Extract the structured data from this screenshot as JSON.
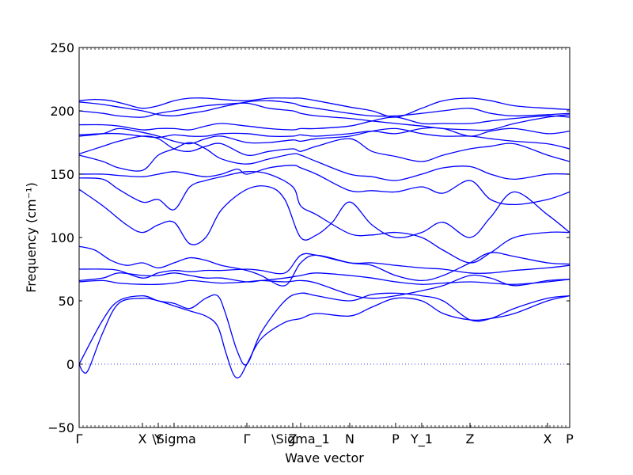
{
  "chart_data": {
    "type": "line",
    "xlabel": "Wave vector",
    "ylabel": "Frequency (cm⁻¹)",
    "ylim": [
      -50,
      250
    ],
    "yticks": [
      -50,
      0,
      50,
      100,
      150,
      200,
      250
    ],
    "zero_line": 0,
    "grid": false,
    "color": "#0000ff",
    "xlim": [
      0,
      6.2
    ],
    "xticks": [
      {
        "label": "Γ",
        "x": 0.0
      },
      {
        "label": "X",
        "x": 0.8
      },
      {
        "label": "Y",
        "x": 1.0
      },
      {
        "label": "\\Sigma",
        "x": 1.2
      },
      {
        "label": "Γ",
        "x": 2.12
      },
      {
        "label": "Z",
        "x": 2.7
      },
      {
        "label": "\\Sigma_1",
        "x": 2.8
      },
      {
        "label": "N",
        "x": 3.42
      },
      {
        "label": "P",
        "x": 4.0
      },
      {
        "label": "Y_1",
        "x": 4.33
      },
      {
        "label": "Z",
        "x": 4.94
      },
      {
        "label": "X",
        "x": 5.92
      },
      {
        "label": "P",
        "x": 6.2
      }
    ],
    "series": [
      {
        "x": [
          0,
          0.05,
          0.12,
          0.3,
          0.5,
          0.8,
          1.0,
          1.2,
          1.4,
          1.6,
          1.75,
          1.85,
          1.95,
          2.03,
          2.12,
          2.3,
          2.6,
          2.8,
          3.0,
          3.42,
          3.7,
          4.0,
          4.33,
          4.6,
          4.94,
          5.2,
          5.5,
          5.92,
          6.2
        ],
        "y": [
          0,
          -6,
          -4,
          25,
          48,
          52,
          50,
          46,
          42,
          38,
          30,
          10,
          -8,
          -10,
          0,
          20,
          33,
          36,
          40,
          38,
          45,
          52,
          50,
          40,
          35,
          36,
          40,
          50,
          54
        ]
      },
      {
        "x": [
          0,
          0.3,
          0.5,
          0.8,
          1.0,
          1.2,
          1.4,
          1.6,
          1.75,
          1.85,
          2.0,
          2.12,
          2.3,
          2.6,
          2.8,
          3.0,
          3.42,
          3.7,
          4.0,
          4.33,
          4.6,
          4.94,
          5.2,
          5.5,
          5.92,
          6.2
        ],
        "y": [
          0,
          35,
          50,
          54,
          50,
          48,
          44,
          52,
          54,
          40,
          10,
          0,
          25,
          50,
          56,
          54,
          50,
          55,
          56,
          54,
          50,
          35,
          36,
          44,
          52,
          54
        ]
      },
      {
        "x": [
          0,
          0.3,
          0.5,
          0.8,
          1.0,
          1.2,
          1.4,
          1.6,
          1.8,
          2.12,
          2.3,
          2.6,
          2.8,
          3.0,
          3.42,
          3.7,
          4.0,
          4.33,
          4.6,
          4.94,
          5.2,
          5.5,
          5.92,
          6.2
        ],
        "y": [
          65,
          66,
          64,
          63,
          63,
          64,
          66,
          65,
          64,
          65,
          66,
          65,
          66,
          64,
          55,
          52,
          54,
          58,
          62,
          70,
          68,
          62,
          66,
          67
        ]
      },
      {
        "x": [
          0,
          0.3,
          0.5,
          0.8,
          1.0,
          1.2,
          1.4,
          1.6,
          1.8,
          2.12,
          2.3,
          2.6,
          2.8,
          3.0,
          3.42,
          3.7,
          4.0,
          4.33,
          4.6,
          4.94,
          5.2,
          5.5,
          5.92,
          6.2
        ],
        "y": [
          66,
          68,
          72,
          70,
          70,
          72,
          70,
          68,
          68,
          65,
          66,
          68,
          70,
          72,
          70,
          68,
          65,
          63,
          64,
          65,
          64,
          63,
          65,
          67
        ]
      },
      {
        "x": [
          0,
          0.3,
          0.5,
          0.8,
          1.0,
          1.2,
          1.4,
          1.6,
          1.8,
          2.12,
          2.3,
          2.6,
          2.8,
          3.0,
          3.42,
          3.7,
          4.0,
          4.33,
          4.6,
          4.94,
          5.2,
          5.5,
          5.92,
          6.2
        ],
        "y": [
          75,
          75,
          74,
          68,
          72,
          74,
          73,
          74,
          74,
          75,
          74,
          72,
          86,
          86,
          80,
          80,
          78,
          76,
          75,
          72,
          72,
          74,
          76,
          78
        ]
      },
      {
        "x": [
          0,
          0.2,
          0.4,
          0.6,
          0.8,
          1.0,
          1.2,
          1.4,
          1.6,
          1.8,
          2.12,
          2.3,
          2.6,
          2.8,
          3.0,
          3.42,
          3.7,
          4.0,
          4.33,
          4.6,
          4.94,
          5.2,
          5.5,
          5.92,
          6.2
        ],
        "y": [
          93,
          90,
          82,
          78,
          80,
          76,
          80,
          84,
          82,
          78,
          74,
          70,
          62,
          80,
          86,
          80,
          78,
          70,
          66,
          70,
          80,
          88,
          85,
          80,
          79
        ]
      },
      {
        "x": [
          0,
          0.3,
          0.6,
          0.8,
          1.0,
          1.2,
          1.4,
          1.6,
          1.8,
          2.12,
          2.4,
          2.6,
          2.8,
          3.0,
          3.2,
          3.42,
          3.7,
          4.0,
          4.33,
          4.6,
          4.94,
          5.2,
          5.5,
          5.92,
          6.2
        ],
        "y": [
          138,
          125,
          110,
          104,
          110,
          112,
          95,
          100,
          122,
          138,
          140,
          130,
          100,
          102,
          112,
          128,
          110,
          100,
          104,
          112,
          100,
          116,
          136,
          118,
          104
        ]
      },
      {
        "x": [
          0,
          0.3,
          0.5,
          0.8,
          1.0,
          1.2,
          1.4,
          1.6,
          1.8,
          2.12,
          2.4,
          2.7,
          2.8,
          3.0,
          3.42,
          3.7,
          4.0,
          4.33,
          4.6,
          4.94,
          5.2,
          5.5,
          5.92,
          6.2
        ],
        "y": [
          147,
          146,
          138,
          128,
          130,
          122,
          140,
          145,
          148,
          152,
          150,
          140,
          125,
          118,
          103,
          102,
          104,
          100,
          90,
          80,
          88,
          100,
          104,
          104
        ]
      },
      {
        "x": [
          0,
          0.3,
          0.5,
          0.8,
          1.0,
          1.2,
          1.4,
          1.6,
          1.8,
          2.0,
          2.12,
          2.4,
          2.7,
          2.8,
          3.0,
          3.42,
          3.7,
          4.0,
          4.33,
          4.6,
          4.94,
          5.2,
          5.5,
          5.92,
          6.2
        ],
        "y": [
          150,
          150,
          149,
          148,
          150,
          152,
          150,
          148,
          150,
          154,
          150,
          155,
          157,
          155,
          150,
          137,
          137,
          136,
          140,
          135,
          145,
          130,
          126,
          130,
          136
        ]
      },
      {
        "x": [
          0,
          0.3,
          0.5,
          0.8,
          1.0,
          1.2,
          1.4,
          1.6,
          1.8,
          2.12,
          2.4,
          2.7,
          2.8,
          3.0,
          3.42,
          3.7,
          4.0,
          4.33,
          4.6,
          4.94,
          5.2,
          5.5,
          5.92,
          6.2
        ],
        "y": [
          165,
          160,
          155,
          153,
          165,
          170,
          175,
          170,
          162,
          158,
          162,
          166,
          165,
          160,
          150,
          148,
          145,
          150,
          155,
          156,
          150,
          146,
          150,
          150
        ]
      },
      {
        "x": [
          0,
          0.3,
          0.5,
          0.8,
          1.0,
          1.2,
          1.4,
          1.6,
          1.8,
          2.12,
          2.4,
          2.7,
          2.8,
          3.0,
          3.42,
          3.7,
          4.0,
          4.33,
          4.6,
          4.94,
          5.2,
          5.5,
          5.92,
          6.2
        ],
        "y": [
          166,
          172,
          176,
          180,
          178,
          170,
          168,
          172,
          174,
          165,
          168,
          170,
          168,
          172,
          178,
          168,
          164,
          160,
          165,
          170,
          172,
          174,
          165,
          160
        ]
      },
      {
        "x": [
          0,
          0.3,
          0.5,
          0.8,
          1.0,
          1.2,
          1.4,
          1.6,
          1.8,
          2.12,
          2.4,
          2.7,
          2.8,
          3.0,
          3.42,
          3.7,
          4.0,
          4.33,
          4.6,
          4.94,
          5.2,
          5.5,
          5.92,
          6.2
        ],
        "y": [
          180,
          182,
          186,
          183,
          180,
          176,
          174,
          178,
          180,
          175,
          175,
          177,
          176,
          178,
          180,
          184,
          186,
          182,
          180,
          180,
          178,
          176,
          174,
          170
        ]
      },
      {
        "x": [
          0,
          0.3,
          0.5,
          0.8,
          1.0,
          1.2,
          1.4,
          1.6,
          1.8,
          2.12,
          2.4,
          2.7,
          2.8,
          3.0,
          3.42,
          3.7,
          4.0,
          4.33,
          4.6,
          4.94,
          5.2,
          5.5,
          5.92,
          6.2
        ],
        "y": [
          181,
          182,
          182,
          180,
          179,
          181,
          180,
          180,
          182,
          182,
          180,
          180,
          181,
          180,
          182,
          184,
          182,
          186,
          186,
          180,
          184,
          186,
          182,
          184
        ]
      },
      {
        "x": [
          0,
          0.3,
          0.5,
          0.8,
          1.0,
          1.2,
          1.4,
          1.6,
          1.8,
          2.12,
          2.4,
          2.7,
          2.8,
          3.0,
          3.42,
          3.7,
          4.0,
          4.33,
          4.6,
          4.94,
          5.2,
          5.5,
          5.92,
          6.2
        ],
        "y": [
          189,
          189,
          188,
          185,
          186,
          186,
          185,
          188,
          190,
          188,
          186,
          185,
          186,
          186,
          188,
          192,
          195,
          190,
          190,
          190,
          192,
          194,
          196,
          195
        ]
      },
      {
        "x": [
          0,
          0.3,
          0.5,
          0.8,
          1.0,
          1.2,
          1.4,
          1.6,
          1.8,
          2.12,
          2.4,
          2.7,
          2.8,
          3.0,
          3.42,
          3.7,
          4.0,
          4.33,
          4.6,
          4.94,
          5.2,
          5.5,
          5.92,
          6.2
        ],
        "y": [
          200,
          198,
          196,
          195,
          198,
          200,
          202,
          204,
          205,
          206,
          202,
          200,
          198,
          196,
          194,
          192,
          190,
          188,
          186,
          185,
          185,
          190,
          195,
          197
        ]
      },
      {
        "x": [
          0,
          0.3,
          0.5,
          0.8,
          1.0,
          1.2,
          1.4,
          1.6,
          1.8,
          2.12,
          2.4,
          2.7,
          2.8,
          3.0,
          3.42,
          3.7,
          4.0,
          4.33,
          4.6,
          4.94,
          5.2,
          5.5,
          5.92,
          6.2
        ],
        "y": [
          207,
          205,
          203,
          200,
          197,
          196,
          198,
          200,
          203,
          207,
          208,
          206,
          204,
          202,
          198,
          196,
          196,
          198,
          200,
          202,
          198,
          196,
          197,
          198
        ]
      },
      {
        "x": [
          0,
          0.2,
          0.4,
          0.6,
          0.8,
          1.0,
          1.2,
          1.4,
          1.6,
          1.8,
          2.12,
          2.4,
          2.7,
          2.8,
          3.0,
          3.42,
          3.7,
          4.0,
          4.33,
          4.6,
          4.94,
          5.2,
          5.5,
          5.92,
          6.2
        ],
        "y": [
          208,
          209,
          208,
          205,
          202,
          204,
          208,
          210,
          210,
          209,
          208,
          210,
          210,
          210,
          208,
          203,
          200,
          195,
          202,
          208,
          210,
          208,
          204,
          202,
          201
        ]
      }
    ]
  }
}
